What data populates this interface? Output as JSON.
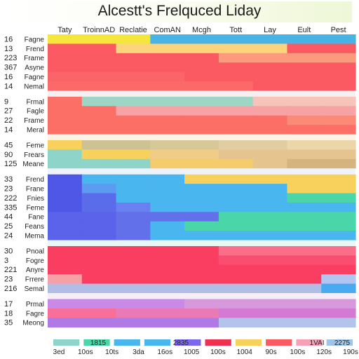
{
  "title": "Alcestt's Frelquced Liday",
  "chart_data": {
    "type": "heatmap",
    "title": "Alcestt's Frelquced Liday",
    "columns": [
      "Taty",
      "TroinnAD",
      "Reclatie",
      "ComAN",
      "Mcgh",
      "Tott",
      "Lay",
      "Eult",
      "Pest"
    ],
    "groups": [
      {
        "rows": [
          {
            "num": "16",
            "name": "Fagne",
            "colors": [
              "#f5e63c",
              "#f5e63c",
              "#f5e63c",
              "#4ab3e6",
              "#4ab3e6",
              "#4ab3e6",
              "#4ab3e6",
              "#4ab3e6",
              "#4ab3e6"
            ]
          },
          {
            "num": "13",
            "name": "Frend",
            "colors": [
              "#fb5a62",
              "#fb5a62",
              "#fbd47c",
              "#fbd47c",
              "#fbd47c",
              "#fbd47c",
              "#fbd47c",
              "#fb5a62",
              "#fb5a62"
            ]
          },
          {
            "num": "223",
            "name": "Frame",
            "colors": [
              "#fb5a62",
              "#fb5a62",
              "#fb5a62",
              "#fb5a62",
              "#fb5a62",
              "#fb9a7c",
              "#fb9a7c",
              "#fb9a7c",
              "#fb9a7c"
            ]
          },
          {
            "num": "367",
            "name": "Asyne",
            "colors": [
              "#fb5a62",
              "#fb5a62",
              "#fb5a62",
              "#fb5a62",
              "#fb5a62",
              "#fb5a62",
              "#fb5a62",
              "#fb5a62",
              "#fb5a62"
            ]
          },
          {
            "num": "16",
            "name": "Fagne",
            "colors": [
              "#fb6468",
              "#fb6468",
              "#fb6468",
              "#fb6468",
              "#fb5a62",
              "#fb5a62",
              "#fb5a62",
              "#fb5a62",
              "#fb5a62"
            ]
          },
          {
            "num": "14",
            "name": "Nemal",
            "colors": [
              "#fb6a68",
              "#fb6a68",
              "#fb6a68",
              "#fb6a68",
              "#fb6a68",
              "#fb6a68",
              "#fb5a62",
              "#fb5a62",
              "#fb5a62"
            ]
          }
        ]
      },
      {
        "rows": [
          {
            "num": "9",
            "name": "Frmal",
            "colors": [
              "#fb6f66",
              "#9ed6c6",
              "#9ed6c6",
              "#9ed6c6",
              "#9ed6c6",
              "#9ed6c6",
              "#f6c4b8",
              "#f6c4b8",
              "#f6c4b8"
            ]
          },
          {
            "num": "27",
            "name": "Fagle",
            "colors": [
              "#fb6f66",
              "#fb6f66",
              "#f7a3a6",
              "#f7a3a6",
              "#f7a3a6",
              "#f7a3a6",
              "#f7a3a6",
              "#f7a3a6",
              "#f7a3a6"
            ]
          },
          {
            "num": "22",
            "name": "Frame",
            "colors": [
              "#fb6f66",
              "#fb6f66",
              "#fb6f66",
              "#fb6f66",
              "#fb6f66",
              "#fb6f66",
              "#fb6f66",
              "#fb8a76",
              "#fb8a76"
            ]
          },
          {
            "num": "14",
            "name": "Meral",
            "colors": [
              "#fb6f66",
              "#fb6f66",
              "#fb6f66",
              "#fb6f66",
              "#fb6f66",
              "#fb6f66",
              "#fb6f66",
              "#fb6f66",
              "#fb6f66"
            ]
          }
        ]
      },
      {
        "rows": [
          {
            "num": "45",
            "name": "Feme",
            "colors": [
              "#f8d05c",
              "#cdc293",
              "#cdc293",
              "#d7c898",
              "#d7c898",
              "#e0cea0",
              "#e0cea0",
              "#ead6a6",
              "#ead6a6"
            ]
          },
          {
            "num": "90",
            "name": "Frears",
            "colors": [
              "#8fd4c8",
              "#f8d05c",
              "#f8d05c",
              "#f0cc86",
              "#f0cc86",
              "#e6c490",
              "#e6c490",
              "#e6c490",
              "#e6c490"
            ]
          },
          {
            "num": "125",
            "name": "Meane",
            "colors": [
              "#8fd4c8",
              "#8fd4c8",
              "#8fd4c8",
              "#f4cc6c",
              "#f4cc6c",
              "#f4cc6c",
              "#e6c48e",
              "#d6b480",
              "#d6b480"
            ]
          }
        ]
      },
      {
        "rows": [
          {
            "num": "33",
            "name": "Frend",
            "colors": [
              "#4f58e6",
              "#4ab6f0",
              "#4ab6f0",
              "#4ab6f0",
              "#f8d05c",
              "#f8d05c",
              "#f8d05c",
              "#f8d05c",
              "#f8d05c"
            ]
          },
          {
            "num": "23",
            "name": "Frane",
            "colors": [
              "#4f58e6",
              "#5b9cf0",
              "#4ab6f0",
              "#4ab6f0",
              "#4ab6f0",
              "#4ab6f0",
              "#4ab6f0",
              "#f8d05c",
              "#f8d05c"
            ]
          },
          {
            "num": "222",
            "name": "Fnies",
            "colors": [
              "#4f58e6",
              "#5b6cea",
              "#4ab6f0",
              "#4ab6f0",
              "#4ab6f0",
              "#4ab6f0",
              "#4ab6f0",
              "#4ad6a8",
              "#4ad6a8"
            ]
          },
          {
            "num": "335",
            "name": "Feme",
            "colors": [
              "#4f58e6",
              "#5b6cea",
              "#6a7ff0",
              "#4ab6f0",
              "#4ab6f0",
              "#4ab6f0",
              "#4ab6f0",
              "#4ab6f0",
              "#4ab6f0"
            ]
          },
          {
            "num": "44",
            "name": "Fane",
            "colors": [
              "#5a63ea",
              "#5a63ea",
              "#6270ea",
              "#6270ea",
              "#6270ea",
              "#4ad6a8",
              "#4ad6a8",
              "#4ad6a8",
              "#4ad6a8"
            ]
          },
          {
            "num": "25",
            "name": "Feans",
            "colors": [
              "#5a63ea",
              "#5a63ea",
              "#6270ea",
              "#4ab6f0",
              "#4ad6a8",
              "#4ad6a8",
              "#4ad6a8",
              "#4ad6a8",
              "#4ad6a8"
            ]
          },
          {
            "num": "24",
            "name": "Mema",
            "colors": [
              "#5a63ea",
              "#5a63ea",
              "#6270ea",
              "#4ab6f0",
              "#4ab6f0",
              "#4ab6f0",
              "#4ab6f0",
              "#4ab6f0",
              "#4ab6f0"
            ]
          }
        ]
      },
      {
        "rows": [
          {
            "num": "30",
            "name": "Pnoal",
            "colors": [
              "#fa3e62",
              "#fa3e62",
              "#fa3e62",
              "#fa3e62",
              "#fa3e62",
              "#fb6e8a",
              "#fb6e8a",
              "#fb6e8a",
              "#fb6e8a"
            ]
          },
          {
            "num": "3",
            "name": "Fogre",
            "colors": [
              "#fa3e62",
              "#fa3e62",
              "#fa3e62",
              "#fa3e62",
              "#fa3e62",
              "#fa4e70",
              "#fa4e70",
              "#fa4e70",
              "#fa4e70"
            ]
          },
          {
            "num": "221",
            "name": "Anyre",
            "colors": [
              "#fa3e62",
              "#fa3e62",
              "#fa3e62",
              "#fa3e62",
              "#fa3e62",
              "#fa3e62",
              "#fa3e62",
              "#fa3e62",
              "#fa3e62"
            ]
          },
          {
            "num": "23",
            "name": "Frrere",
            "colors": [
              "#f7a0a8",
              "#fa3e62",
              "#fa3e62",
              "#fa3e62",
              "#fa3e62",
              "#fa3e62",
              "#fa3e62",
              "#fa3e62",
              "#b2c4f0"
            ]
          },
          {
            "num": "216",
            "name": "Semal",
            "colors": [
              "#b2bde6",
              "#b2bde6",
              "#b2bde6",
              "#b2bde6",
              "#b2bde6",
              "#b2bde6",
              "#b2bde6",
              "#b2bde6",
              "#4aaaf0"
            ]
          }
        ]
      },
      {
        "rows": [
          {
            "num": "17",
            "name": "Prmal",
            "colors": [
              "#c88ae6",
              "#c88ae6",
              "#c88ae6",
              "#c88ae6",
              "#d898dc",
              "#d898dc",
              "#d898dc",
              "#d898dc",
              "#d898dc"
            ]
          },
          {
            "num": "18",
            "name": "Fagre",
            "colors": [
              "#fa6e9a",
              "#fa6e9a",
              "#ea7ab6",
              "#ea7ab6",
              "#ea7ab6",
              "#d47ad2",
              "#d47ad2",
              "#d47ad2",
              "#d47ad2"
            ]
          },
          {
            "num": "35",
            "name": "Meong",
            "colors": [
              "#b07ae6",
              "#b07ae6",
              "#b07ae6",
              "#b07ae6",
              "#b07ae6",
              "#b2c4ea",
              "#b2c4ea",
              "#b2c4ea",
              "#b2c4ea"
            ]
          }
        ]
      }
    ],
    "legend": {
      "swatches": [
        "#8fd4c8",
        "#4ad6a8",
        "#4ab6f0",
        "#4ab6f0",
        "#7b68ee",
        "#f03050",
        "#f8d05c",
        "#fb5a62",
        "#f7a0b8",
        "#a0c4e6"
      ],
      "top_labels": [
        "1815",
        "2835",
        "1VAI",
        "2275"
      ],
      "bottom_labels": [
        "3ed",
        "10os",
        "10ts",
        "3da",
        "16os",
        "1005",
        "100s",
        "1004",
        "90s",
        "100s",
        "120s",
        "190s"
      ]
    }
  }
}
